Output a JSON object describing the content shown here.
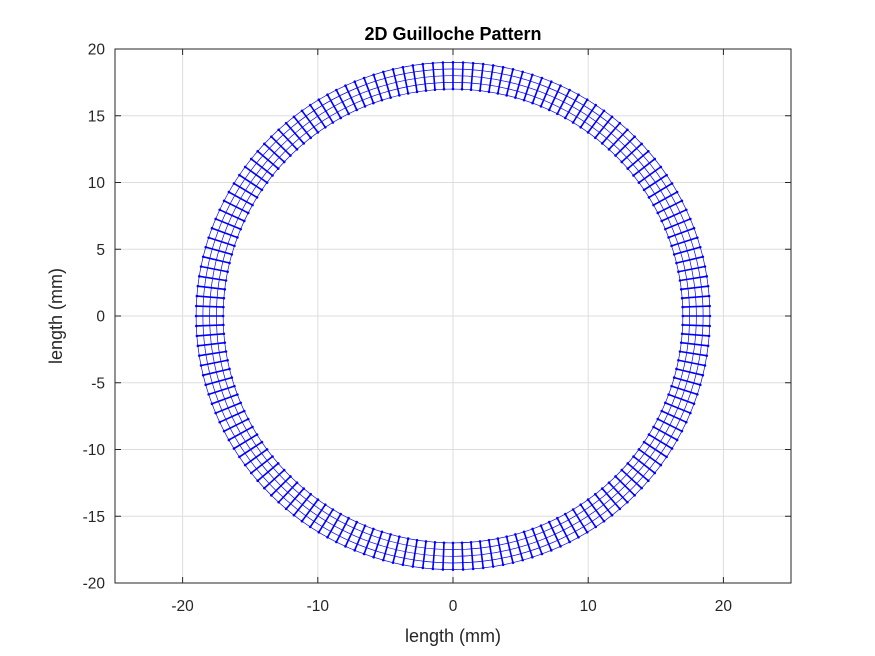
{
  "chart_data": {
    "type": "line",
    "title": "2D Guilloche Pattern",
    "xlabel": "length (mm)",
    "ylabel": "length (mm)",
    "xlim": [
      -25,
      25
    ],
    "ylim": [
      -20,
      20
    ],
    "xticks": [
      -20,
      -10,
      0,
      10,
      20
    ],
    "yticks": [
      -20,
      -15,
      -10,
      -5,
      0,
      5,
      10,
      15,
      20
    ],
    "grid": true,
    "legend": "none",
    "pattern": {
      "inner_radius": 17,
      "outer_radius": 19,
      "center": [
        0,
        0
      ],
      "spoke_count": 160,
      "ring_count": 5
    },
    "colors": {
      "series": "#0000ff",
      "axes": "#262626",
      "grid": "#dedede",
      "background": "#ffffff"
    }
  }
}
